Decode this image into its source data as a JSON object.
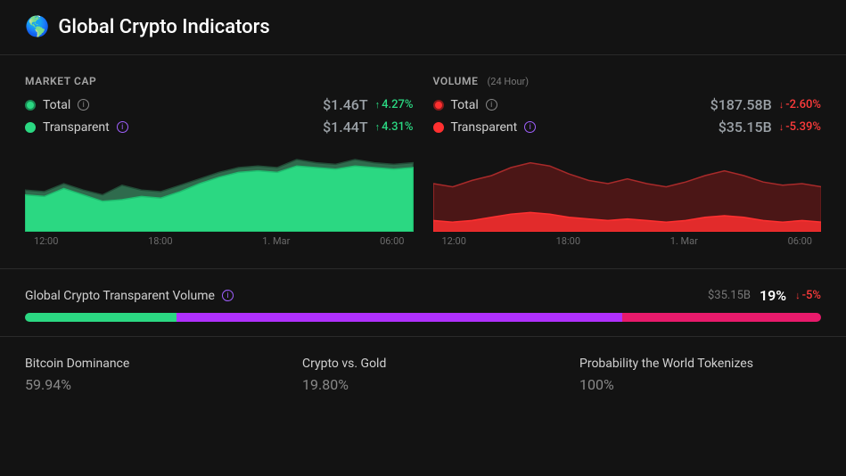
{
  "header": {
    "globe": "🌎",
    "title": "Global Crypto Indicators"
  },
  "marketcap": {
    "title": "MARKET CAP",
    "total": {
      "label": "Total",
      "value": "$1.46T",
      "change": "4.27%",
      "dir": "up",
      "dot": "#2bd882",
      "dot_border": "#1a8a54"
    },
    "transparent": {
      "label": "Transparent",
      "value": "$1.44T",
      "change": "4.31%",
      "dir": "up",
      "dot": "#2bd882",
      "dot_border": "#2bd882"
    },
    "chart": {
      "type": "area",
      "colors": {
        "back_fill": "#2f6b4d",
        "back_stroke": "#224c37",
        "front_fill": "#2bd882",
        "front_stroke": "#1fbd6f"
      },
      "ylim": [
        0,
        100
      ],
      "back_points": [
        52,
        50,
        60,
        52,
        46,
        58,
        52,
        50,
        58,
        66,
        74,
        80,
        82,
        80,
        90,
        86,
        84,
        90,
        86,
        84,
        86
      ],
      "front_points": [
        46,
        44,
        54,
        46,
        38,
        40,
        44,
        42,
        50,
        60,
        68,
        74,
        76,
        74,
        82,
        80,
        78,
        82,
        80,
        78,
        80
      ],
      "x_labels": [
        "12:00",
        "18:00",
        "1. Mar",
        "06:00"
      ]
    }
  },
  "volume": {
    "title": "VOLUME",
    "subtitle": "(24 Hour)",
    "total": {
      "label": "Total",
      "value": "$187.58B",
      "change": "-2.60%",
      "dir": "down",
      "dot": "#ff3030",
      "dot_border": "#8a1a1a"
    },
    "transparent": {
      "label": "Transparent",
      "value": "$35.15B",
      "change": "-5.39%",
      "dir": "down",
      "dot": "#ff3030",
      "dot_border": "#ff3030"
    },
    "chart": {
      "type": "area",
      "colors": {
        "back_fill": "rgba(180,30,30,0.35)",
        "back_stroke": "#a82a2a",
        "front_fill": "#e22b2b",
        "front_stroke": "#ff3030"
      },
      "ylim": [
        0,
        100
      ],
      "back_points": [
        60,
        56,
        64,
        70,
        80,
        86,
        82,
        72,
        64,
        60,
        66,
        60,
        56,
        62,
        70,
        76,
        70,
        62,
        58,
        60,
        56
      ],
      "front_points": [
        14,
        12,
        14,
        18,
        22,
        24,
        22,
        18,
        16,
        14,
        16,
        14,
        12,
        14,
        18,
        20,
        18,
        14,
        12,
        14,
        12
      ],
      "x_labels": [
        "12:00",
        "18:00",
        "1. Mar",
        "06:00"
      ]
    }
  },
  "gctv": {
    "title": "Global Crypto Transparent Volume",
    "value": "$35.15B",
    "pct": "19%",
    "change": "-5%",
    "dir": "down",
    "bar": [
      {
        "color": "#2bd882",
        "width": 19
      },
      {
        "color": "#b030ff",
        "width": 56
      },
      {
        "color": "#e81a6b",
        "width": 25
      }
    ]
  },
  "stats": {
    "a": {
      "title": "Bitcoin Dominance",
      "value": "59.94%"
    },
    "b": {
      "title": "Crypto vs. Gold",
      "value": "19.80%"
    },
    "c": {
      "title": "Probability the World Tokenizes",
      "value": "100%"
    }
  }
}
